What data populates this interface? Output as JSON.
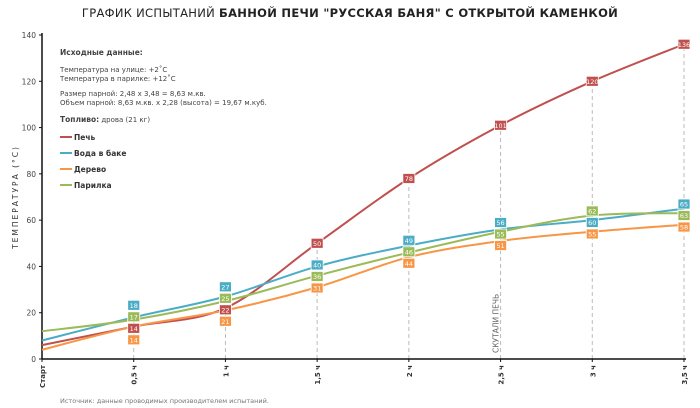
{
  "chart_data": {
    "type": "line",
    "title_normal": "ГРАФИК ИСПЫТАНИЙ",
    "title_bold": "БАННОЙ ПЕЧИ \"РУССКАЯ БАНЯ\" С ОТКРЫТОЙ КАМЕНКОЙ",
    "ylabel": "ТЕМПЕРАТУРА  (°C)",
    "xlabel": "",
    "ylim": [
      0,
      140
    ],
    "yticks": [
      "0",
      "20",
      "40",
      "60",
      "80",
      "100",
      "120",
      "140"
    ],
    "categories": [
      "Старт",
      "0,5 ч",
      "1 ч",
      "1,5 ч",
      "2 ч",
      "2,5 ч",
      "3 ч",
      "3,5 ч"
    ],
    "series": [
      {
        "name": "Печь",
        "color": "#c0504d",
        "values": [
          6,
          14,
          22,
          50,
          78,
          101,
          120,
          136
        ]
      },
      {
        "name": "Вода в баке",
        "color": "#4bacc6",
        "values": [
          8,
          18,
          27,
          40,
          49,
          56,
          60,
          65
        ]
      },
      {
        "name": "Дерево",
        "color": "#f79646",
        "values": [
          4,
          14,
          21,
          31,
          44,
          51,
          55,
          58
        ]
      },
      {
        "name": "Парилка",
        "color": "#9bbb59",
        "values": [
          12,
          17,
          25,
          36,
          46,
          55,
          62,
          63
        ]
      }
    ],
    "annotation": {
      "category": "2,5 ч",
      "text": "СКУТАЛИ ПЕЧЬ"
    },
    "grid": false,
    "legend_position": "top-left"
  },
  "info": {
    "heading": "Исходные данные:",
    "line1": "Температура на улице: +2˚С",
    "line2": "Температура в парилке: +12˚С",
    "line3": "Размер парной: 2,48 х 3,48 = 8,63 м.кв.",
    "line4": "Объем парной: 8,63 м.кв. х 2,28 (высота) = 19,67 м.куб.",
    "fuel_label": "Топливо:",
    "fuel_value": "дрова (21 кг)"
  },
  "source": "Источник: данные проводимых производителем испытаний."
}
